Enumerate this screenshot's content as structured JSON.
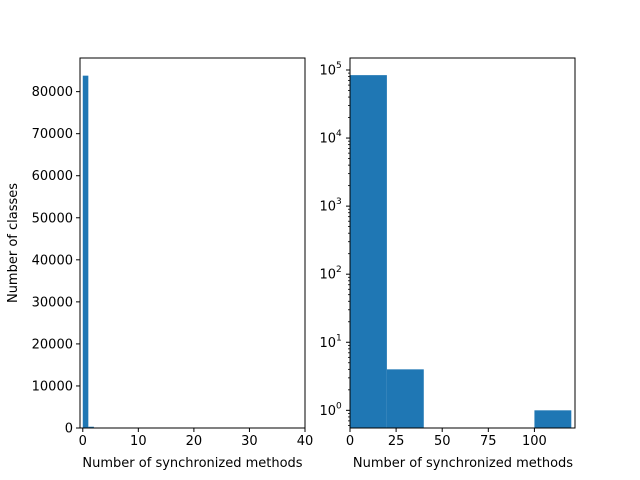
{
  "chart_data": [
    {
      "type": "bar",
      "scale": "linear",
      "xlabel": "Number of synchronized methods",
      "ylabel": "Number of classes",
      "xlim": [
        -0.5,
        40
      ],
      "ylim": [
        0,
        88000
      ],
      "xticks": [
        "0",
        "10",
        "20",
        "30",
        "40"
      ],
      "yticks": [
        "0",
        "10000",
        "20000",
        "30000",
        "40000",
        "50000",
        "60000",
        "70000",
        "80000"
      ],
      "bins": [
        {
          "x0": 0,
          "x1": 1,
          "value": 83800
        },
        {
          "x0": 1,
          "x1": 2,
          "value": 300
        }
      ],
      "color": "#1f77b4"
    },
    {
      "type": "bar",
      "scale": "log",
      "xlabel": "Number of synchronized methods",
      "ylabel": "",
      "xlim": [
        0,
        122
      ],
      "ylim": [
        0.55,
        150000
      ],
      "xticks": [
        "0",
        "25",
        "50",
        "75",
        "100"
      ],
      "yticks_base": "10",
      "yticks_exp": [
        "0",
        "1",
        "2",
        "3",
        "4",
        "5"
      ],
      "bins": [
        {
          "x0": 0,
          "x1": 20,
          "value": 84000
        },
        {
          "x0": 20,
          "x1": 40,
          "value": 4
        },
        {
          "x0": 100,
          "x1": 120,
          "value": 1
        }
      ],
      "color": "#1f77b4"
    }
  ]
}
